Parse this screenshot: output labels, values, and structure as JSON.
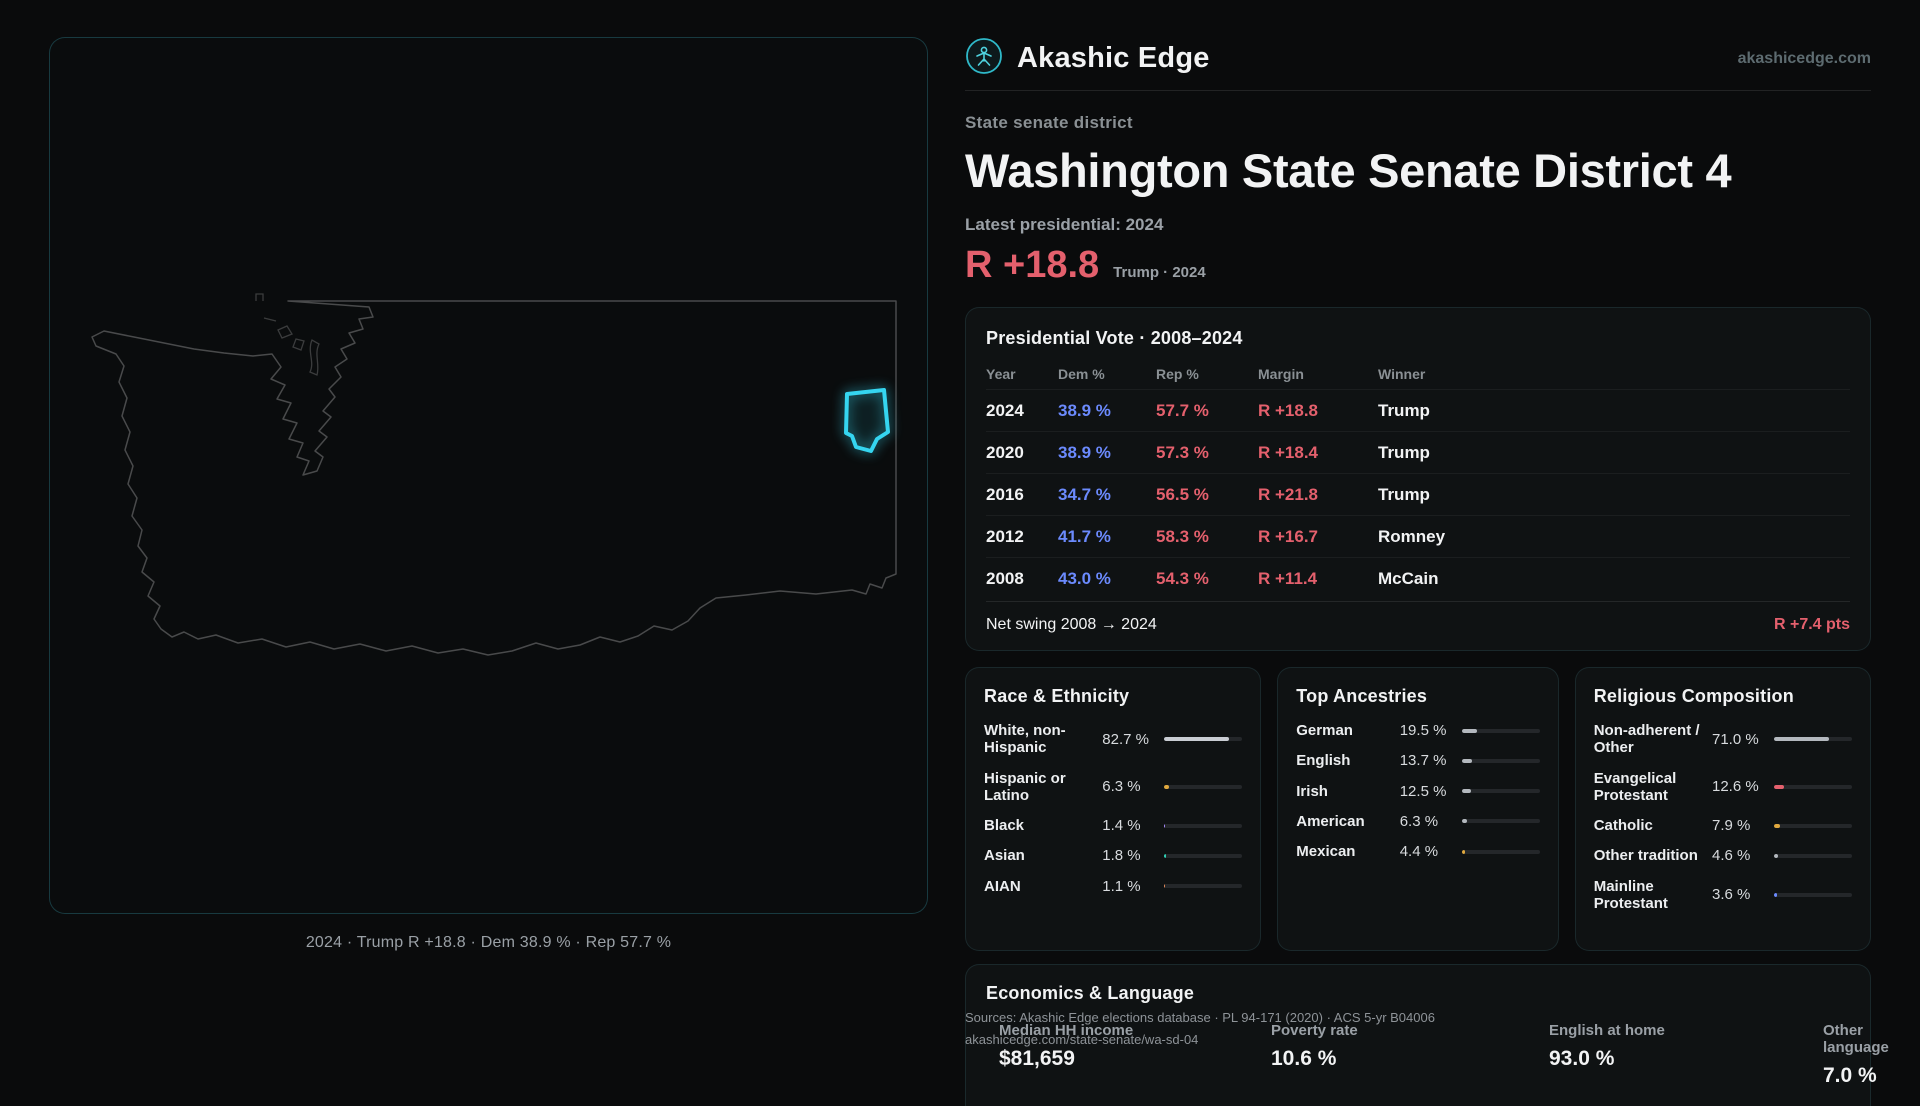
{
  "header": {
    "brand": "Akashic Edge",
    "domain": "akashicedge.com",
    "logo_icon": "akashic-logo",
    "accent_teal": "#2fb9c9"
  },
  "map": {
    "caption": "2024 · Trump R +18.8 · Dem 38.9 % · Rep 57.7 %",
    "district_highlight_color": "#35d5f0"
  },
  "overview": {
    "eyebrow": "State senate district",
    "title": "Washington State Senate District 4",
    "latest_label": "Latest presidential: 2024",
    "margin_value": "R +18.8",
    "margin_context": "Trump · 2024",
    "margin_color": "#e4606d"
  },
  "presidential": {
    "title": "Presidential Vote · 2008–2024",
    "columns": [
      "Year",
      "Dem %",
      "Rep %",
      "Margin",
      "Winner"
    ],
    "rows": [
      {
        "year": "2024",
        "dem": "38.9 %",
        "rep": "57.7 %",
        "margin": "R +18.8",
        "winner": "Trump"
      },
      {
        "year": "2020",
        "dem": "38.9 %",
        "rep": "57.3 %",
        "margin": "R +18.4",
        "winner": "Trump"
      },
      {
        "year": "2016",
        "dem": "34.7 %",
        "rep": "56.5 %",
        "margin": "R +21.8",
        "winner": "Trump"
      },
      {
        "year": "2012",
        "dem": "41.7 %",
        "rep": "58.3 %",
        "margin": "R +16.7",
        "winner": "Romney"
      },
      {
        "year": "2008",
        "dem": "43.0 %",
        "rep": "54.3 %",
        "margin": "R +11.4",
        "winner": "McCain"
      }
    ],
    "dem_color": "#6b8afd",
    "rep_color": "#e4606d",
    "net_swing_label": "Net swing 2008 → 2024",
    "net_swing_value": "R +7.4 pts"
  },
  "demographics": [
    {
      "title": "Race & Ethnicity",
      "rows": [
        {
          "label": "White, non-Hispanic",
          "value": "82.7 %",
          "pct": 82.7,
          "color": "#c9cdd3"
        },
        {
          "label": "Hispanic or Latino",
          "value": "6.3 %",
          "pct": 6.3,
          "color": "#e0a83e"
        },
        {
          "label": "Black",
          "value": "1.4 %",
          "pct": 1.4,
          "color": "#a78bfa"
        },
        {
          "label": "Asian",
          "value": "1.8 %",
          "pct": 1.8,
          "color": "#2fd0b5"
        },
        {
          "label": "AIAN",
          "value": "1.1 %",
          "pct": 1.1,
          "color": "#e08a5a"
        }
      ]
    },
    {
      "title": "Top Ancestries",
      "rows": [
        {
          "label": "German",
          "value": "19.5 %",
          "pct": 19.5,
          "color": "#b3b8be"
        },
        {
          "label": "English",
          "value": "13.7 %",
          "pct": 13.7,
          "color": "#b3b8be"
        },
        {
          "label": "Irish",
          "value": "12.5 %",
          "pct": 12.5,
          "color": "#b3b8be"
        },
        {
          "label": "American",
          "value": "6.3 %",
          "pct": 6.3,
          "color": "#b3b8be"
        },
        {
          "label": "Mexican",
          "value": "4.4 %",
          "pct": 4.4,
          "color": "#e0a83e"
        }
      ]
    },
    {
      "title": "Religious Composition",
      "rows": [
        {
          "label": "Non-adherent / Other",
          "value": "71.0 %",
          "pct": 71.0,
          "color": "#b3b8be"
        },
        {
          "label": "Evangelical Protestant",
          "value": "12.6 %",
          "pct": 12.6,
          "color": "#e4606d"
        },
        {
          "label": "Catholic",
          "value": "7.9 %",
          "pct": 7.9,
          "color": "#e0a83e"
        },
        {
          "label": "Other tradition",
          "value": "4.6 %",
          "pct": 4.6,
          "color": "#b3b8be"
        },
        {
          "label": "Mainline Protestant",
          "value": "3.6 %",
          "pct": 3.6,
          "color": "#6b8afd"
        }
      ]
    }
  ],
  "economics": {
    "title": "Economics & Language",
    "stats": [
      {
        "label": "Median HH income",
        "value": "$81,659"
      },
      {
        "label": "Poverty rate",
        "value": "10.6 %"
      },
      {
        "label": "English at home",
        "value": "93.0 %"
      },
      {
        "label": "Other language",
        "value": "7.0 %"
      }
    ]
  },
  "footer": {
    "line1": "Sources: Akashic Edge elections database · PL 94-171 (2020) · ACS 5-yr B04006",
    "line2": "akashicedge.com/state-senate/wa-sd-04"
  }
}
